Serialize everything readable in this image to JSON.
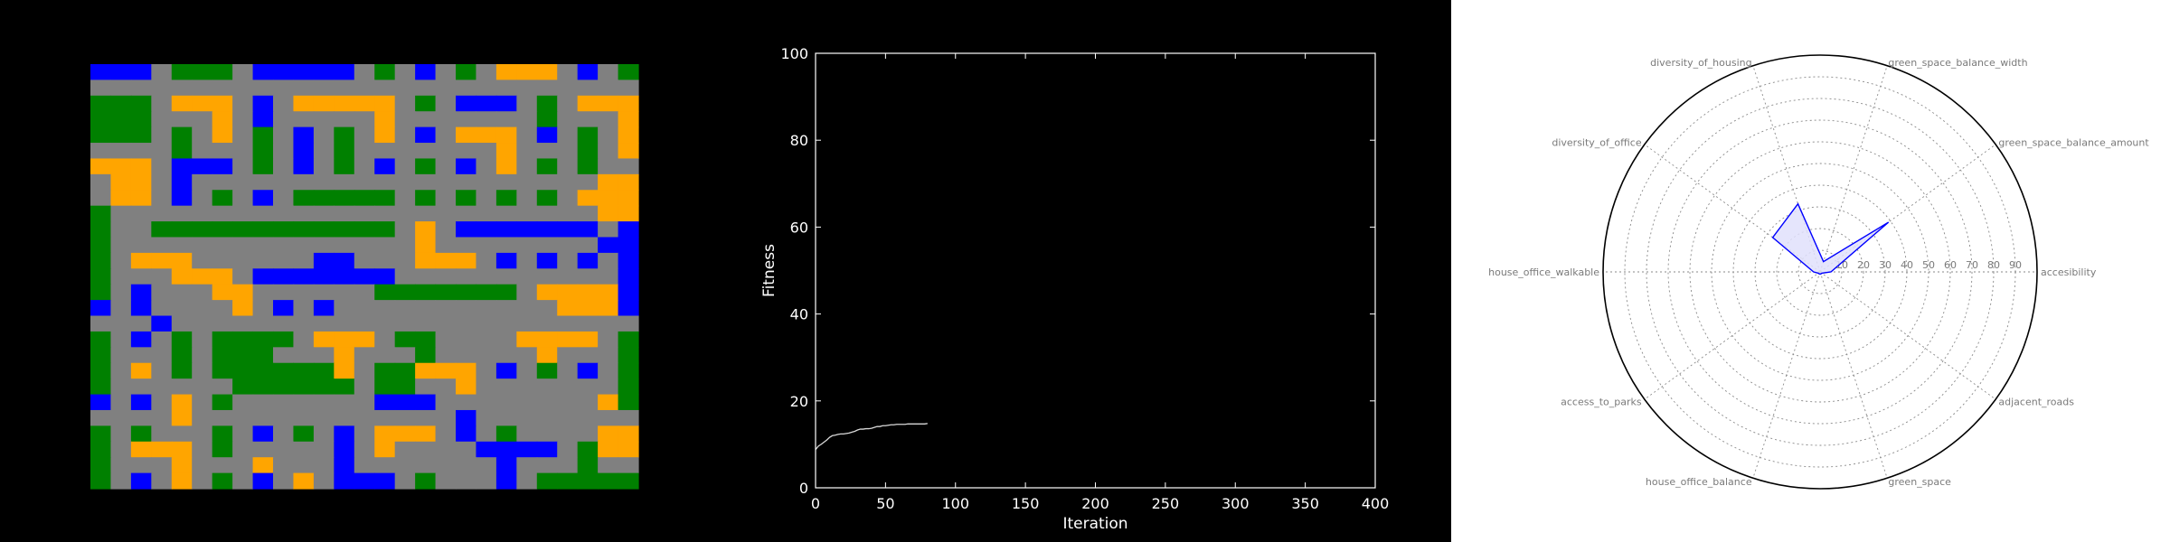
{
  "colors": {
    "background": "#000000",
    "map_gray": "#808080",
    "map_green": "#008000",
    "map_blue": "#0000ff",
    "map_orange": "#ffa500",
    "line_color": "#d8d8d8",
    "radar_line": "#0000ff",
    "radar_fill": "#e0e0fc"
  },
  "map": {
    "legend": {
      "g": "gray",
      "G": "green",
      "B": "blue",
      "O": "orange"
    },
    "rows": [
      "BBBgGGGgBBBBBgGgBgGgOOOgBgG",
      "ggggggggggggggggggggggggggg",
      "GGGgOOOgBgOOOOOgGgBBBgGgOOO",
      "GGGgggOgBgggggOgggggggGgggO",
      "GGGgGgOgGgBgGgOgBgOOOgBgGgO",
      "ggggGgggGgBgGgggggggOgggGgO",
      "OOOgBBBgGgBgGgBgGgBgOgGgGgg",
      "gOOgBggggggggggggggggggggOO",
      "gOOgBgGgBgGGGGGgGgGgGgGgOOO",
      "GggggggggggggggggggggggggOO",
      "GggGGGGGGGGGGGGgOgBBBBBBBgB",
      "GgggggggggggggggOggggggggBB",
      "GgOOOggggggBBgggOOOgBgBgBgB",
      "GgggOOOgBBBBBBBgggggggggggB",
      "GgBgggOOggggggGGGGGGGgOOOOB",
      "BgBggggOgBgBgggggggggggOOOB",
      "gggBggggggggggggggggggggggg",
      "GgBgGgGGGGgOOOgGGggggOOOOgG",
      "GgggGgGGGgggOgggGgggggOgggG",
      "GgOgGgGGGGGGOgGGOOOgBgGgBgG",
      "GggggggGGGGGGgGGggOgggggggG",
      "BgBgOgGgggggggBBBggggggggOG",
      "ggggOgggggggggggggBgggggggg",
      "GgGgggGgBgGgBgOOOgBgGggggOO",
      "GgOOOgGgggggBgOggggBBBBgGOO",
      "GgggOgggOgggBgggggggBgggGgg",
      "GgBgOgGgBgOgBBBgGgggBgGGGGG"
    ]
  },
  "chart_data": [
    {
      "type": "line",
      "title": "",
      "xlabel": "Iteration",
      "ylabel": "Fitness",
      "xlim": [
        0,
        400
      ],
      "ylim": [
        0,
        100
      ],
      "xticks": [
        "0",
        "50",
        "100",
        "150",
        "200",
        "250",
        "300",
        "350",
        "400"
      ],
      "yticks": [
        "0",
        "20",
        "40",
        "60",
        "80",
        "100"
      ],
      "grid": false,
      "series": [
        {
          "x": [
            0,
            2,
            4,
            6,
            8,
            10,
            12,
            14,
            16,
            18,
            20,
            22,
            24,
            26,
            28,
            30,
            32,
            34,
            36,
            38,
            40,
            42,
            44,
            46,
            48,
            50,
            52,
            54,
            56,
            58,
            60,
            62,
            64,
            66,
            68,
            70,
            72,
            74,
            76,
            78,
            80
          ],
          "y": [
            8.8,
            9.6,
            10.0,
            10.5,
            11.0,
            11.6,
            12.0,
            12.1,
            12.3,
            12.4,
            12.4,
            12.5,
            12.6,
            12.8,
            13.0,
            13.3,
            13.5,
            13.5,
            13.6,
            13.6,
            13.7,
            13.9,
            14.1,
            14.1,
            14.3,
            14.3,
            14.4,
            14.5,
            14.5,
            14.6,
            14.6,
            14.6,
            14.6,
            14.7,
            14.7,
            14.7,
            14.7,
            14.7,
            14.7,
            14.7,
            14.8
          ]
        }
      ]
    },
    {
      "type": "radar",
      "title": "",
      "rlim": [
        0,
        100
      ],
      "rticks": [
        "10",
        "20",
        "30",
        "40",
        "50",
        "60",
        "70",
        "80",
        "90"
      ],
      "grid": true,
      "categories": [
        "accesibility",
        "green_space_balance_amount",
        "green_space_balance_width",
        "diversity_of_housing",
        "diversity_of_office",
        "house_office_walkable",
        "access_to_parks",
        "house_office_balance",
        "green_space",
        "adjacent_roads"
      ],
      "values": [
        5,
        39,
        5,
        33,
        27,
        3,
        1,
        1,
        1,
        1
      ]
    }
  ]
}
